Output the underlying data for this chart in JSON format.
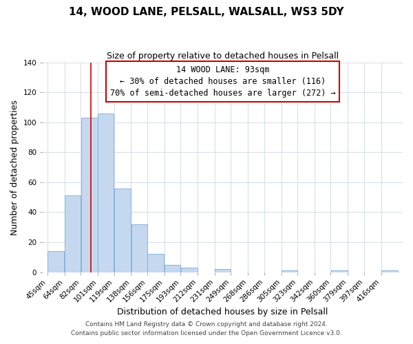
{
  "title": "14, WOOD LANE, PELSALL, WALSALL, WS3 5DY",
  "subtitle": "Size of property relative to detached houses in Pelsall",
  "xlabel": "Distribution of detached houses by size in Pelsall",
  "ylabel": "Number of detached properties",
  "bar_labels": [
    "45sqm",
    "64sqm",
    "82sqm",
    "101sqm",
    "119sqm",
    "138sqm",
    "156sqm",
    "175sqm",
    "193sqm",
    "212sqm",
    "231sqm",
    "249sqm",
    "268sqm",
    "286sqm",
    "305sqm",
    "323sqm",
    "342sqm",
    "360sqm",
    "379sqm",
    "397sqm",
    "416sqm"
  ],
  "bar_values": [
    14,
    51,
    103,
    106,
    56,
    32,
    12,
    5,
    3,
    0,
    2,
    0,
    0,
    0,
    1,
    0,
    0,
    1,
    0,
    0,
    1
  ],
  "bar_fill_color": "#c5d8f0",
  "bar_edge_color": "#7aafd4",
  "ylim": [
    0,
    140
  ],
  "yticks": [
    0,
    20,
    40,
    60,
    80,
    100,
    120,
    140
  ],
  "property_line_x": 93,
  "annotation_title": "14 WOOD LANE: 93sqm",
  "annotation_line1": "← 30% of detached houses are smaller (116)",
  "annotation_line2": "70% of semi-detached houses are larger (272) →",
  "red_line_color": "#cc0000",
  "annotation_box_color": "#ffffff",
  "annotation_box_edge": "#cc0000",
  "footer1": "Contains HM Land Registry data © Crown copyright and database right 2024.",
  "footer2": "Contains public sector information licensed under the Open Government Licence v3.0.",
  "background_color": "#ffffff",
  "plot_bg_color": "#ffffff",
  "grid_color": "#d8e0ec",
  "title_fontsize": 11,
  "subtitle_fontsize": 9,
  "axis_label_fontsize": 9,
  "tick_fontsize": 7.5,
  "annotation_fontsize": 8.5,
  "footer_fontsize": 6.5
}
